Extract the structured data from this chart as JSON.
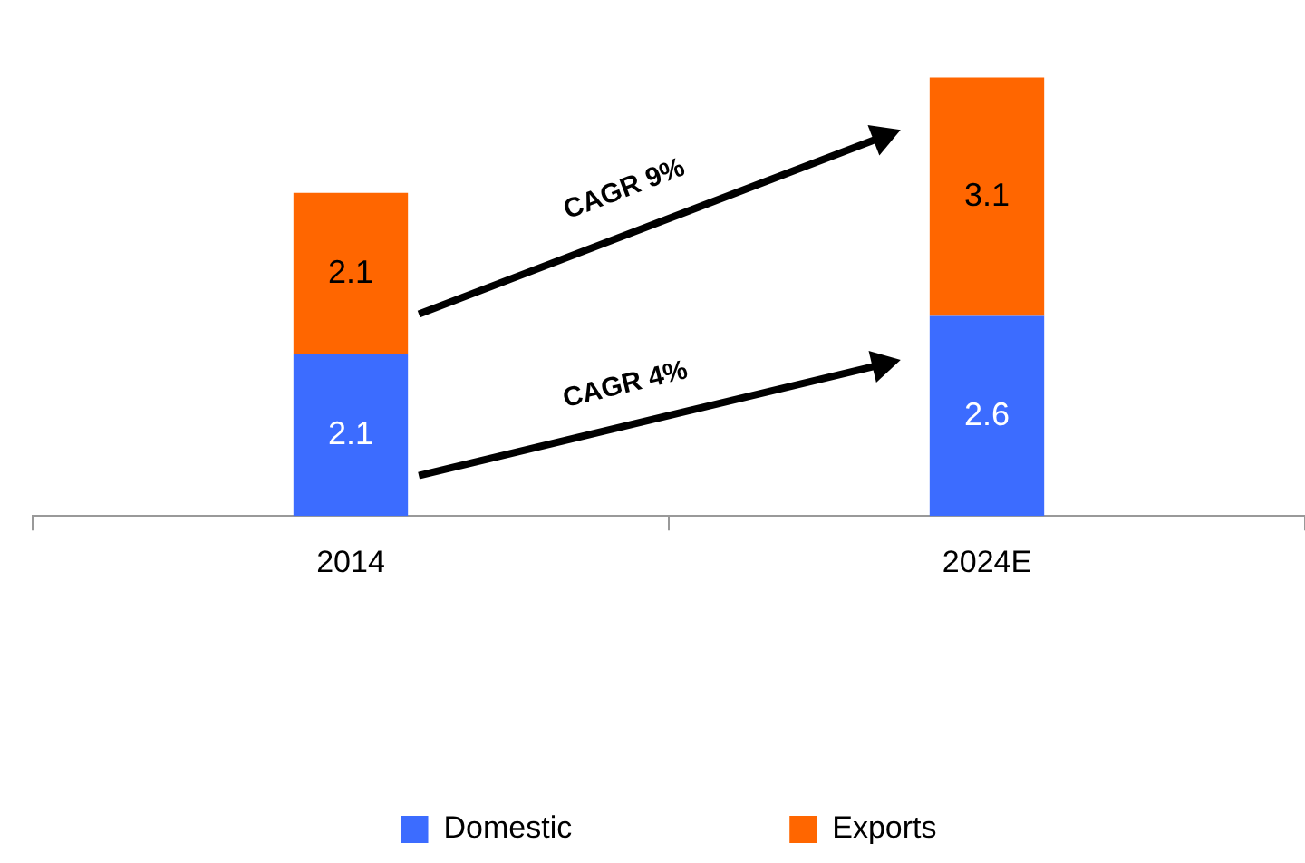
{
  "chart_data": {
    "type": "bar",
    "stacked": true,
    "categories": [
      "2014",
      "2024E"
    ],
    "series": [
      {
        "name": "Domestic",
        "color": "#3c6cff",
        "values": [
          2.1,
          2.6
        ]
      },
      {
        "name": "Exports",
        "color": "#ff6600",
        "values": [
          2.1,
          3.1
        ]
      }
    ],
    "data_labels": true,
    "legend": "bottom",
    "grid": false,
    "annotations": [
      "CAGR 9%",
      "CAGR 4%"
    ]
  }
}
